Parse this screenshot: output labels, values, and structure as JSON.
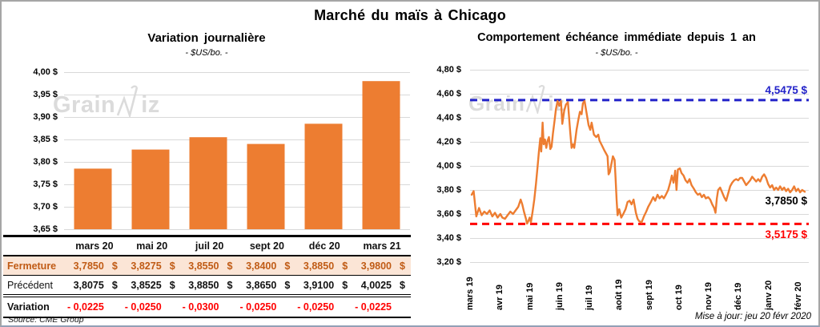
{
  "header": {
    "title": "Marché du maïs à Chicago"
  },
  "watermark": {
    "part1": "Grain",
    "part2": "iz"
  },
  "left_panel": {
    "title": "Variation journalière",
    "subtitle": "- $US/bo. -",
    "source": "Source: CME Group"
  },
  "right_panel": {
    "title": "Comportement échéance immédiate depuis 1 an",
    "subtitle": "- $US/bo. -",
    "high_label": "4,5475 $",
    "last_label": "3,7850 $",
    "low_label": "3,5175 $",
    "update_note": "Mise à jour: jeu 20 févr 2020"
  },
  "table": {
    "currency": "$",
    "columns": [
      "mars 20",
      "mai 20",
      "juil 20",
      "sept 20",
      "déc 20",
      "mars 21"
    ],
    "rows": [
      {
        "label": "Fermeture",
        "values": [
          "3,7850",
          "3,8275",
          "3,8550",
          "3,8400",
          "3,8850",
          "3,9800"
        ]
      },
      {
        "label": "Précédent",
        "values": [
          "3,8075",
          "3,8525",
          "3,8850",
          "3,8650",
          "3,9100",
          "4,0025"
        ]
      },
      {
        "label": "Variation",
        "values": [
          "- 0,0225",
          "- 0,0250",
          "- 0,0300",
          "- 0,0250",
          "- 0,0250",
          "- 0,0225"
        ]
      }
    ]
  },
  "colors": {
    "orange": "#ED7D31",
    "blue": "#2323C9",
    "red": "#FF0000",
    "grid": "#D9D9D9",
    "fermeture_bg": "#FBE5D6",
    "fermeture_text": "#C05B15",
    "watermark": "#DBDBDB"
  },
  "chart_data": [
    {
      "type": "bar",
      "title": "Variation journalière",
      "xlabel": "",
      "ylabel": "$US/bo.",
      "categories": [
        "mars 20",
        "mai 20",
        "juil 20",
        "sept 20",
        "déc 20",
        "mars 21"
      ],
      "values": [
        3.785,
        3.8275,
        3.855,
        3.84,
        3.885,
        3.98
      ],
      "ylim": [
        3.65,
        4.0
      ],
      "grid": true,
      "bar_color": "#ED7D31",
      "y_ticks": [
        {
          "value": 4.0,
          "label": "4,00 $"
        },
        {
          "value": 3.95,
          "label": "3,95 $"
        },
        {
          "value": 3.9,
          "label": "3,90 $"
        },
        {
          "value": 3.85,
          "label": "3,85 $"
        },
        {
          "value": 3.8,
          "label": "3,80 $"
        },
        {
          "value": 3.75,
          "label": "3,75 $"
        },
        {
          "value": 3.7,
          "label": "3,70 $"
        },
        {
          "value": 3.65,
          "label": "3,65 $"
        }
      ]
    },
    {
      "type": "line",
      "title": "Comportement échéance immédiate depuis 1 an",
      "xlabel": "",
      "ylabel": "$US/bo.",
      "ylim": [
        3.2,
        4.8
      ],
      "grid": true,
      "line_color": "#ED7D31",
      "x_tick_labels": [
        "mars 19",
        "avr 19",
        "mai 19",
        "juin 19",
        "juil 19",
        "août 19",
        "sept 19",
        "oct 19",
        "nov 19",
        "déc 19",
        "janv 20",
        "févr 20"
      ],
      "y_ticks": [
        {
          "value": 4.8,
          "label": "4,80 $"
        },
        {
          "value": 4.6,
          "label": "4,60 $"
        },
        {
          "value": 4.4,
          "label": "4,40 $"
        },
        {
          "value": 4.2,
          "label": "4,20 $"
        },
        {
          "value": 4.0,
          "label": "4,00 $"
        },
        {
          "value": 3.8,
          "label": "3,80 $"
        },
        {
          "value": 3.6,
          "label": "3,60 $"
        },
        {
          "value": 3.4,
          "label": "3,40 $"
        },
        {
          "value": 3.2,
          "label": "3,20 $"
        }
      ],
      "reference_lines": [
        {
          "name": "high",
          "value": 4.5475,
          "label": "4,5475 $",
          "color": "#2323C9"
        },
        {
          "name": "low",
          "value": 3.5175,
          "label": "3,5175 $",
          "color": "#FF0000"
        }
      ],
      "last_point": {
        "value": 3.785,
        "label": "3,7850 $"
      },
      "points": [
        [
          0,
          3.76
        ],
        [
          0.006,
          3.79
        ],
        [
          0.014,
          3.58
        ],
        [
          0.022,
          3.65
        ],
        [
          0.03,
          3.59
        ],
        [
          0.038,
          3.62
        ],
        [
          0.046,
          3.6
        ],
        [
          0.054,
          3.63
        ],
        [
          0.062,
          3.58
        ],
        [
          0.07,
          3.61
        ],
        [
          0.078,
          3.57
        ],
        [
          0.086,
          3.6
        ],
        [
          0.092,
          3.57
        ],
        [
          0.1,
          3.56
        ],
        [
          0.108,
          3.59
        ],
        [
          0.116,
          3.62
        ],
        [
          0.124,
          3.6
        ],
        [
          0.132,
          3.63
        ],
        [
          0.14,
          3.66
        ],
        [
          0.147,
          3.72
        ],
        [
          0.152,
          3.68
        ],
        [
          0.157,
          3.62
        ],
        [
          0.163,
          3.56
        ],
        [
          0.166,
          3.52
        ],
        [
          0.17,
          3.54
        ],
        [
          0.174,
          3.57
        ],
        [
          0.178,
          3.53
        ],
        [
          0.183,
          3.62
        ],
        [
          0.188,
          3.72
        ],
        [
          0.193,
          3.85
        ],
        [
          0.198,
          4.0
        ],
        [
          0.202,
          4.12
        ],
        [
          0.206,
          4.23
        ],
        [
          0.209,
          4.12
        ],
        [
          0.213,
          4.36
        ],
        [
          0.216,
          4.18
        ],
        [
          0.22,
          4.22
        ],
        [
          0.224,
          4.15
        ],
        [
          0.228,
          4.21
        ],
        [
          0.232,
          4.24
        ],
        [
          0.236,
          4.14
        ],
        [
          0.24,
          4.16
        ],
        [
          0.244,
          4.27
        ],
        [
          0.249,
          4.38
        ],
        [
          0.253,
          4.47
        ],
        [
          0.258,
          4.54
        ],
        [
          0.263,
          4.5
        ],
        [
          0.268,
          4.54
        ],
        [
          0.272,
          4.35
        ],
        [
          0.278,
          4.46
        ],
        [
          0.283,
          4.51
        ],
        [
          0.289,
          4.53
        ],
        [
          0.296,
          4.28
        ],
        [
          0.3,
          4.15
        ],
        [
          0.304,
          4.18
        ],
        [
          0.308,
          4.15
        ],
        [
          0.315,
          4.3
        ],
        [
          0.32,
          4.38
        ],
        [
          0.325,
          4.45
        ],
        [
          0.33,
          4.43
        ],
        [
          0.334,
          4.52
        ],
        [
          0.339,
          4.54
        ],
        [
          0.345,
          4.44
        ],
        [
          0.351,
          4.34
        ],
        [
          0.356,
          4.3
        ],
        [
          0.36,
          4.36
        ],
        [
          0.367,
          4.26
        ],
        [
          0.374,
          4.24
        ],
        [
          0.38,
          4.26
        ],
        [
          0.384,
          4.21
        ],
        [
          0.391,
          4.17
        ],
        [
          0.398,
          4.13
        ],
        [
          0.404,
          4.1
        ],
        [
          0.408,
          4.08
        ],
        [
          0.411,
          3.93
        ],
        [
          0.415,
          3.95
        ],
        [
          0.419,
          4.01
        ],
        [
          0.424,
          4.08
        ],
        [
          0.429,
          4.05
        ],
        [
          0.432,
          3.9
        ],
        [
          0.435,
          3.72
        ],
        [
          0.438,
          3.59
        ],
        [
          0.443,
          3.64
        ],
        [
          0.449,
          3.57
        ],
        [
          0.455,
          3.6
        ],
        [
          0.462,
          3.64
        ],
        [
          0.468,
          3.7
        ],
        [
          0.474,
          3.71
        ],
        [
          0.48,
          3.68
        ],
        [
          0.486,
          3.72
        ],
        [
          0.493,
          3.61
        ],
        [
          0.498,
          3.56
        ],
        [
          0.503,
          3.54
        ],
        [
          0.51,
          3.53
        ],
        [
          0.517,
          3.58
        ],
        [
          0.524,
          3.62
        ],
        [
          0.53,
          3.66
        ],
        [
          0.538,
          3.7
        ],
        [
          0.545,
          3.74
        ],
        [
          0.551,
          3.71
        ],
        [
          0.558,
          3.76
        ],
        [
          0.564,
          3.73
        ],
        [
          0.571,
          3.75
        ],
        [
          0.577,
          3.73
        ],
        [
          0.583,
          3.76
        ],
        [
          0.59,
          3.8
        ],
        [
          0.596,
          3.86
        ],
        [
          0.601,
          3.92
        ],
        [
          0.606,
          3.86
        ],
        [
          0.611,
          3.96
        ],
        [
          0.615,
          3.8
        ],
        [
          0.619,
          3.97
        ],
        [
          0.625,
          3.98
        ],
        [
          0.63,
          3.94
        ],
        [
          0.636,
          3.92
        ],
        [
          0.642,
          3.88
        ],
        [
          0.648,
          3.86
        ],
        [
          0.654,
          3.89
        ],
        [
          0.66,
          3.84
        ],
        [
          0.667,
          3.81
        ],
        [
          0.673,
          3.78
        ],
        [
          0.679,
          3.76
        ],
        [
          0.685,
          3.77
        ],
        [
          0.691,
          3.74
        ],
        [
          0.697,
          3.76
        ],
        [
          0.703,
          3.73
        ],
        [
          0.71,
          3.74
        ],
        [
          0.716,
          3.72
        ],
        [
          0.722,
          3.68
        ],
        [
          0.728,
          3.65
        ],
        [
          0.732,
          3.61
        ],
        [
          0.736,
          3.73
        ],
        [
          0.74,
          3.8
        ],
        [
          0.746,
          3.82
        ],
        [
          0.752,
          3.78
        ],
        [
          0.758,
          3.74
        ],
        [
          0.764,
          3.71
        ],
        [
          0.77,
          3.77
        ],
        [
          0.776,
          3.83
        ],
        [
          0.782,
          3.86
        ],
        [
          0.788,
          3.88
        ],
        [
          0.794,
          3.89
        ],
        [
          0.8,
          3.88
        ],
        [
          0.806,
          3.9
        ],
        [
          0.812,
          3.9
        ],
        [
          0.818,
          3.87
        ],
        [
          0.824,
          3.84
        ],
        [
          0.83,
          3.86
        ],
        [
          0.836,
          3.88
        ],
        [
          0.842,
          3.91
        ],
        [
          0.848,
          3.89
        ],
        [
          0.854,
          3.87
        ],
        [
          0.86,
          3.89
        ],
        [
          0.866,
          3.87
        ],
        [
          0.872,
          3.91
        ],
        [
          0.878,
          3.93
        ],
        [
          0.884,
          3.9
        ],
        [
          0.89,
          3.85
        ],
        [
          0.896,
          3.82
        ],
        [
          0.902,
          3.84
        ],
        [
          0.908,
          3.8
        ],
        [
          0.914,
          3.82
        ],
        [
          0.92,
          3.8
        ],
        [
          0.926,
          3.83
        ],
        [
          0.932,
          3.8
        ],
        [
          0.938,
          3.82
        ],
        [
          0.944,
          3.79
        ],
        [
          0.95,
          3.81
        ],
        [
          0.956,
          3.78
        ],
        [
          0.962,
          3.8
        ],
        [
          0.968,
          3.83
        ],
        [
          0.974,
          3.79
        ],
        [
          0.98,
          3.81
        ],
        [
          0.986,
          3.78
        ],
        [
          0.992,
          3.8
        ],
        [
          1,
          3.785
        ]
      ]
    }
  ]
}
